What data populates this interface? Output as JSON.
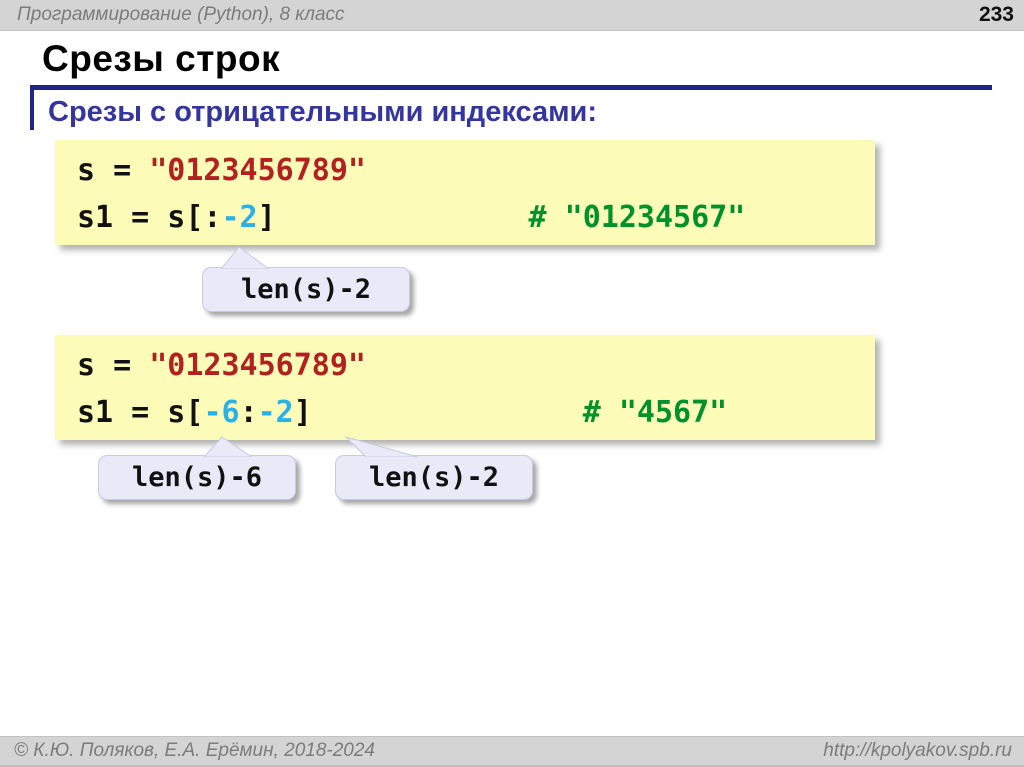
{
  "header": {
    "course": "Программирование (Python), 8 класс",
    "page": "233"
  },
  "title": "Срезы строк",
  "subtitle": "Срезы с отрицательными индексами:",
  "colors": {
    "bar_background": "#d4d4d4",
    "title_rule": "#23238f",
    "subtitle_text": "#3535a0",
    "code_box_background": "#fcfcb8",
    "code_string": "#b22020",
    "code_number": "#29b0e6",
    "code_comment": "#00922a",
    "callout_background": "#e9e9f8"
  },
  "code_boxes": [
    {
      "lines": [
        [
          {
            "t": "s = ",
            "c": "plain"
          },
          {
            "t": "\"0123456789\"",
            "c": "string"
          }
        ],
        [
          {
            "t": "s1 = s[:",
            "c": "plain"
          },
          {
            "t": "-2",
            "c": "number"
          },
          {
            "t": "]",
            "c": "plain"
          },
          {
            "t": "              # \"01234567\"",
            "c": "comment"
          }
        ]
      ]
    },
    {
      "lines": [
        [
          {
            "t": "s = ",
            "c": "plain"
          },
          {
            "t": "\"0123456789\"",
            "c": "string"
          }
        ],
        [
          {
            "t": "s1 = s[",
            "c": "plain"
          },
          {
            "t": "-6",
            "c": "number"
          },
          {
            "t": ":",
            "c": "plain"
          },
          {
            "t": "-2",
            "c": "number"
          },
          {
            "t": "]",
            "c": "plain"
          },
          {
            "t": "               # \"4567\"",
            "c": "comment"
          }
        ]
      ]
    }
  ],
  "callouts": [
    {
      "label": "len(s)-2"
    },
    {
      "label": "len(s)-6"
    },
    {
      "label": "len(s)-2"
    }
  ],
  "footer": {
    "copyright": "© К.Ю. Поляков, Е.А. Ерёмин, 2018-2024",
    "url": "http://kpolyakov.spb.ru"
  }
}
